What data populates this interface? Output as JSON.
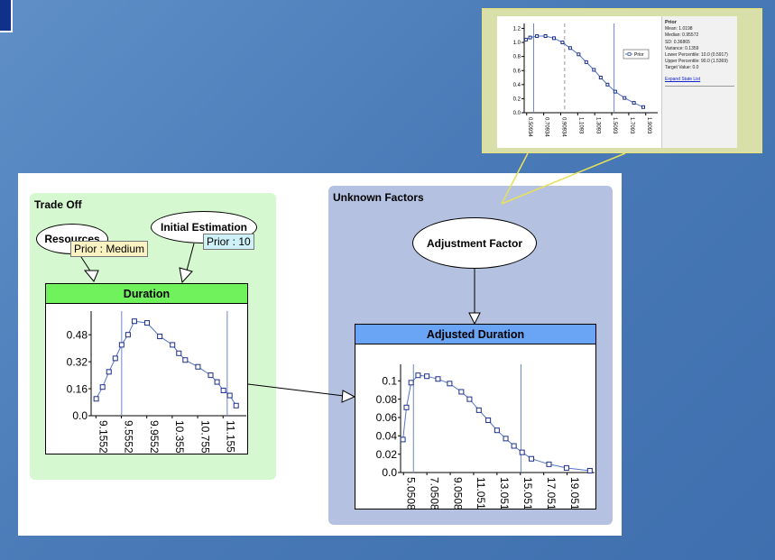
{
  "groups": {
    "trade_off": {
      "title": "Trade Off"
    },
    "unknown_factors": {
      "title": "Unknown Factors"
    }
  },
  "nodes": {
    "resources": {
      "label": "Resources",
      "prior": "Prior : Medium"
    },
    "initial_estimation": {
      "label": "Initial Estimation",
      "prior": "Prior : 10"
    },
    "adjustment_factor": {
      "label": "Adjustment Factor"
    },
    "duration": {
      "title": "Duration"
    },
    "adjusted_duration": {
      "title": "Adjusted Duration"
    }
  },
  "colors": {
    "duration_header": "#6ff25b",
    "adjusted_header": "#6aa4f5",
    "curve": "#5574c8",
    "marker": "#1c2e8a",
    "percentile_line": "#6b85c8"
  },
  "chart_data": [
    {
      "id": "duration",
      "type": "line",
      "y_ticks": [
        "0.48",
        "0.32",
        "0.16",
        "0.0"
      ],
      "y_tick_values": [
        0.48,
        0.32,
        0.16,
        0.0
      ],
      "x_ticks": [
        "9.1552",
        "9.5552",
        "9.9552",
        "10.355",
        "10.755",
        "11.155"
      ],
      "x_tick_values": [
        9.1552,
        9.5552,
        9.9552,
        10.355,
        10.755,
        11.155
      ],
      "x": [
        9.16,
        9.26,
        9.36,
        9.46,
        9.56,
        9.66,
        9.76,
        9.96,
        10.16,
        10.36,
        10.46,
        10.56,
        10.76,
        10.96,
        11.06,
        11.16,
        11.26,
        11.36
      ],
      "values": [
        0.1,
        0.17,
        0.26,
        0.34,
        0.42,
        0.48,
        0.56,
        0.55,
        0.47,
        0.42,
        0.37,
        0.33,
        0.29,
        0.24,
        0.2,
        0.15,
        0.12,
        0.06
      ],
      "xlim": [
        9.08,
        11.52
      ],
      "ylim": [
        0.0,
        0.62
      ],
      "percentile_lines": [
        9.56,
        11.22
      ]
    },
    {
      "id": "adjusted_duration",
      "type": "line",
      "y_ticks": [
        "0.1",
        "0.08",
        "0.06",
        "0.04",
        "0.02",
        "0.0"
      ],
      "y_tick_values": [
        0.1,
        0.08,
        0.06,
        0.04,
        0.02,
        0.0
      ],
      "x_ticks": [
        "5.0508",
        "7.0508",
        "9.0508",
        "11.051",
        "13.051",
        "15.051",
        "17.051",
        "19.051"
      ],
      "x_tick_values": [
        5.0508,
        7.0508,
        9.0508,
        11.051,
        13.051,
        15.051,
        17.051,
        19.051
      ],
      "x": [
        5.0,
        5.3,
        5.7,
        6.3,
        7.05,
        8.0,
        9.0,
        10.0,
        10.7,
        11.5,
        12.3,
        13.05,
        13.8,
        14.5,
        15.2,
        16.0,
        17.5,
        19.0,
        21.0
      ],
      "values": [
        0.036,
        0.071,
        0.098,
        0.106,
        0.105,
        0.102,
        0.097,
        0.088,
        0.08,
        0.068,
        0.057,
        0.046,
        0.037,
        0.029,
        0.022,
        0.015,
        0.009,
        0.005,
        0.002
      ],
      "xlim": [
        4.8,
        21.4
      ],
      "ylim": [
        0.0,
        0.118
      ],
      "percentile_lines": [
        5.9,
        15.1
      ]
    },
    {
      "id": "popup_prior",
      "type": "line",
      "y_ticks": [
        "1.2",
        "1.0",
        "0.8",
        "0.6",
        "0.4",
        "0.2",
        "0.0"
      ],
      "y_tick_values": [
        1.2,
        1.0,
        0.8,
        0.6,
        0.4,
        0.2,
        0.0
      ],
      "x_ticks": [
        "0.50934",
        "0.70934",
        "0.90934",
        "1.1093",
        "1.3093",
        "1.5093",
        "1.7093",
        "1.9093"
      ],
      "x_tick_values": [
        0.50934,
        0.70934,
        0.90934,
        1.1093,
        1.3093,
        1.5093,
        1.7093,
        1.9093
      ],
      "x": [
        0.5,
        0.55,
        0.63,
        0.73,
        0.83,
        0.93,
        1.02,
        1.12,
        1.21,
        1.3,
        1.38,
        1.46,
        1.55,
        1.66,
        1.77,
        1.88
      ],
      "values": [
        1.04,
        1.07,
        1.09,
        1.09,
        1.06,
        1.0,
        0.92,
        0.83,
        0.72,
        0.61,
        0.5,
        0.4,
        0.3,
        0.21,
        0.14,
        0.08
      ],
      "xlim": [
        0.48,
        2.05
      ],
      "ylim": [
        0.0,
        1.27
      ],
      "percentile_lines": [
        0.5917,
        1.5369
      ],
      "median_line": 0.95572,
      "legend": [
        "Prior"
      ]
    }
  ],
  "popup_panel": {
    "title": "Prior",
    "lines": [
      "Mean: 1.0198",
      "Median: 0.95572",
      "SD: 0.36865",
      "Variance: 0.1359",
      "Lower Percentile: 10.0 (0.5917)",
      "Upper Percentile: 90.0 (1.5369)",
      "Target Value: 0.0"
    ],
    "link": "Expand State List"
  }
}
